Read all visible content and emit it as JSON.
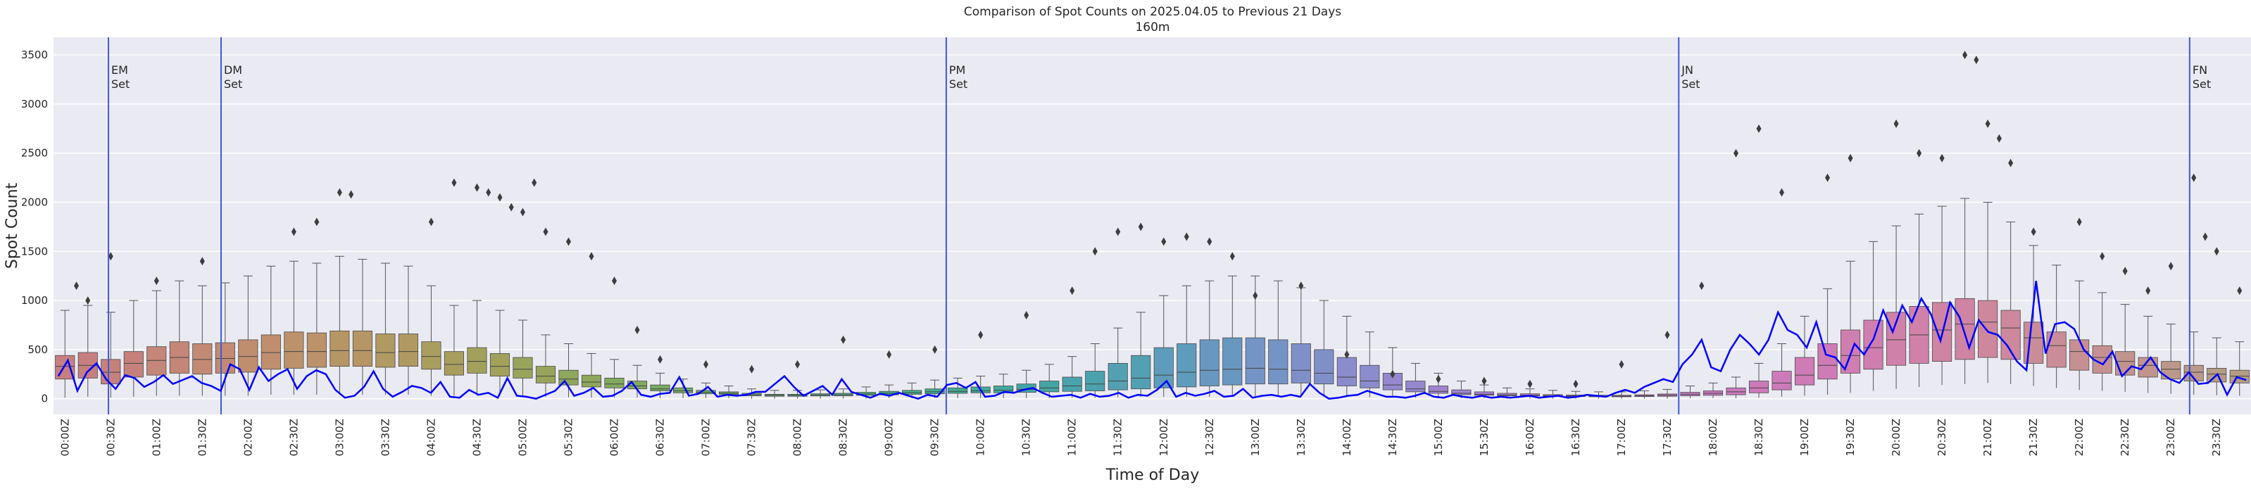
{
  "chart_data": {
    "type": "box",
    "title": "Comparison of Spot Counts on 2025.04.05 to Previous 21 Days",
    "subtitle": "160m",
    "xlabel": "Time of Day",
    "ylabel": "Spot Count",
    "ylim": [
      -160,
      3680
    ],
    "yticks": [
      0,
      500,
      1000,
      1500,
      2000,
      2500,
      3000,
      3500
    ],
    "grid": true,
    "bins_per_hour": 4,
    "n_bins": 96,
    "xtick_labels": [
      "00:00Z",
      "00:30Z",
      "01:00Z",
      "01:30Z",
      "02:00Z",
      "02:30Z",
      "03:00Z",
      "03:30Z",
      "04:00Z",
      "04:30Z",
      "05:00Z",
      "05:30Z",
      "06:00Z",
      "06:30Z",
      "07:00Z",
      "07:30Z",
      "08:00Z",
      "08:30Z",
      "09:00Z",
      "09:30Z",
      "10:00Z",
      "10:30Z",
      "11:00Z",
      "11:30Z",
      "12:00Z",
      "12:30Z",
      "13:00Z",
      "13:30Z",
      "14:00Z",
      "14:30Z",
      "15:00Z",
      "15:30Z",
      "16:00Z",
      "16:30Z",
      "17:00Z",
      "17:30Z",
      "18:00Z",
      "18:30Z",
      "19:00Z",
      "19:30Z",
      "20:00Z",
      "20:30Z",
      "21:00Z",
      "21:30Z",
      "22:00Z",
      "22:30Z",
      "23:00Z",
      "23:30Z"
    ],
    "set_lines": [
      {
        "label_lines": [
          "EM",
          "Set"
        ],
        "time_hours": 0.6
      },
      {
        "label_lines": [
          "DM",
          "Set"
        ],
        "time_hours": 1.83
      },
      {
        "label_lines": [
          "PM",
          "Set"
        ],
        "time_hours": 9.75
      },
      {
        "label_lines": [
          "JN",
          "Set"
        ],
        "time_hours": 17.75
      },
      {
        "label_lines": [
          "FN",
          "Set"
        ],
        "time_hours": 23.33
      }
    ],
    "box_series": {
      "name": "previous 21 days",
      "q1": [
        200,
        210,
        150,
        220,
        240,
        260,
        250,
        260,
        270,
        300,
        310,
        320,
        330,
        330,
        320,
        330,
        300,
        240,
        260,
        230,
        210,
        160,
        140,
        120,
        110,
        100,
        80,
        60,
        50,
        45,
        30,
        25,
        25,
        28,
        30,
        35,
        40,
        45,
        50,
        55,
        60,
        60,
        65,
        70,
        75,
        80,
        90,
        100,
        110,
        120,
        130,
        140,
        150,
        150,
        160,
        150,
        130,
        110,
        90,
        70,
        55,
        40,
        35,
        30,
        28,
        25,
        22,
        20,
        20,
        22,
        25,
        30,
        35,
        40,
        60,
        90,
        140,
        200,
        260,
        300,
        340,
        360,
        380,
        400,
        420,
        400,
        360,
        320,
        290,
        260,
        240,
        220,
        200,
        180,
        170,
        160
      ],
      "median": [
        330,
        340,
        270,
        360,
        390,
        420,
        400,
        410,
        430,
        470,
        480,
        480,
        490,
        490,
        470,
        480,
        430,
        350,
        380,
        330,
        300,
        230,
        200,
        170,
        150,
        130,
        100,
        80,
        65,
        55,
        40,
        35,
        35,
        38,
        40,
        48,
        55,
        60,
        70,
        75,
        80,
        85,
        95,
        110,
        130,
        150,
        180,
        210,
        240,
        270,
        290,
        300,
        310,
        300,
        290,
        260,
        220,
        180,
        140,
        100,
        75,
        55,
        45,
        38,
        35,
        30,
        28,
        26,
        26,
        30,
        35,
        45,
        55,
        70,
        110,
        160,
        240,
        340,
        440,
        520,
        600,
        650,
        700,
        760,
        780,
        720,
        620,
        540,
        480,
        420,
        380,
        340,
        300,
        270,
        250,
        230
      ],
      "q3": [
        440,
        470,
        400,
        480,
        530,
        580,
        560,
        570,
        600,
        650,
        680,
        670,
        690,
        690,
        660,
        660,
        580,
        480,
        520,
        460,
        420,
        330,
        290,
        240,
        210,
        180,
        140,
        110,
        85,
        70,
        55,
        45,
        45,
        50,
        55,
        65,
        75,
        85,
        100,
        110,
        120,
        130,
        150,
        180,
        220,
        280,
        360,
        440,
        520,
        560,
        600,
        620,
        620,
        600,
        560,
        500,
        420,
        340,
        260,
        180,
        130,
        90,
        70,
        55,
        50,
        42,
        38,
        35,
        35,
        40,
        48,
        65,
        80,
        110,
        180,
        280,
        420,
        560,
        700,
        800,
        880,
        940,
        980,
        1020,
        1000,
        900,
        780,
        680,
        600,
        540,
        480,
        420,
        380,
        340,
        310,
        290
      ],
      "wlo": [
        10,
        20,
        10,
        20,
        30,
        30,
        30,
        30,
        30,
        40,
        40,
        40,
        40,
        40,
        40,
        40,
        30,
        30,
        30,
        30,
        20,
        20,
        15,
        10,
        10,
        10,
        5,
        5,
        5,
        5,
        0,
        0,
        0,
        0,
        0,
        0,
        5,
        5,
        5,
        5,
        5,
        5,
        5,
        5,
        10,
        10,
        15,
        20,
        20,
        20,
        20,
        25,
        25,
        25,
        25,
        20,
        20,
        15,
        10,
        10,
        5,
        5,
        5,
        0,
        0,
        0,
        0,
        0,
        0,
        0,
        0,
        5,
        5,
        5,
        10,
        20,
        30,
        40,
        60,
        80,
        100,
        120,
        140,
        150,
        160,
        150,
        130,
        110,
        90,
        80,
        70,
        60,
        50,
        40,
        35,
        30
      ],
      "whi": [
        900,
        950,
        880,
        1000,
        1100,
        1200,
        1150,
        1180,
        1250,
        1350,
        1400,
        1380,
        1450,
        1420,
        1380,
        1350,
        1150,
        950,
        1000,
        900,
        800,
        650,
        560,
        460,
        400,
        340,
        260,
        200,
        160,
        130,
        100,
        85,
        85,
        90,
        100,
        120,
        140,
        160,
        190,
        210,
        230,
        250,
        290,
        350,
        430,
        560,
        720,
        880,
        1050,
        1150,
        1200,
        1250,
        1250,
        1200,
        1130,
        1000,
        840,
        680,
        520,
        360,
        260,
        180,
        140,
        110,
        100,
        85,
        75,
        70,
        70,
        80,
        95,
        130,
        160,
        220,
        360,
        560,
        840,
        1120,
        1400,
        1600,
        1760,
        1880,
        1960,
        2040,
        2000,
        1800,
        1560,
        1360,
        1200,
        1080,
        960,
        840,
        760,
        680,
        620,
        580
      ],
      "colors": [
        "#c67f7f",
        "#c6817c",
        "#c48678",
        "#c28a73",
        "#bf8e6e",
        "#bb926a",
        "#b69665",
        "#b09a61",
        "#a99e5e",
        "#a1a15c",
        "#98a45b",
        "#8ea75c",
        "#83a95e",
        "#78ab62",
        "#6cac68",
        "#61ad6f",
        "#56ad77",
        "#4dad80",
        "#46ac89",
        "#42ab92",
        "#41a99b",
        "#44a6a4",
        "#4aa3ac",
        "#53a0b3",
        "#5d9cba",
        "#6898c0",
        "#7494c5",
        "#7f90c9",
        "#8a8ccc",
        "#9588ce",
        "#9f84cf",
        "#a981cf",
        "#b17ece",
        "#b97ccc",
        "#c07ac9",
        "#c579c5",
        "#ca79c0",
        "#cd7abb",
        "#cf7bb5",
        "#d07eaf",
        "#d081a9",
        "#cf84a3",
        "#cd889d",
        "#ca8c97",
        "#c69092",
        "#c1948d",
        "#bb9889",
        "#b49c85"
      ]
    },
    "outlier_points": [
      {
        "t": 0.25,
        "v": 1000
      },
      {
        "t": 0.125,
        "v": 1150
      },
      {
        "t": 0.5,
        "v": 1450
      },
      {
        "t": 1.0,
        "v": 1200
      },
      {
        "t": 1.5,
        "v": 1400
      },
      {
        "t": 2.5,
        "v": 1700
      },
      {
        "t": 2.75,
        "v": 1800
      },
      {
        "t": 3.0,
        "v": 2100
      },
      {
        "t": 3.125,
        "v": 2080
      },
      {
        "t": 4.0,
        "v": 1800
      },
      {
        "t": 4.25,
        "v": 2200
      },
      {
        "t": 4.5,
        "v": 2150
      },
      {
        "t": 4.625,
        "v": 2100
      },
      {
        "t": 4.75,
        "v": 2050
      },
      {
        "t": 4.875,
        "v": 1950
      },
      {
        "t": 5.0,
        "v": 1900
      },
      {
        "t": 5.125,
        "v": 2200
      },
      {
        "t": 5.25,
        "v": 1700
      },
      {
        "t": 5.5,
        "v": 1600
      },
      {
        "t": 5.75,
        "v": 1450
      },
      {
        "t": 6.0,
        "v": 1200
      },
      {
        "t": 6.25,
        "v": 700
      },
      {
        "t": 6.5,
        "v": 400
      },
      {
        "t": 7.0,
        "v": 350
      },
      {
        "t": 7.5,
        "v": 300
      },
      {
        "t": 8.0,
        "v": 350
      },
      {
        "t": 8.5,
        "v": 600
      },
      {
        "t": 9.0,
        "v": 450
      },
      {
        "t": 9.5,
        "v": 500
      },
      {
        "t": 10.0,
        "v": 650
      },
      {
        "t": 10.5,
        "v": 850
      },
      {
        "t": 11.0,
        "v": 1100
      },
      {
        "t": 11.25,
        "v": 1500
      },
      {
        "t": 11.5,
        "v": 1700
      },
      {
        "t": 11.75,
        "v": 1750
      },
      {
        "t": 12.0,
        "v": 1600
      },
      {
        "t": 12.25,
        "v": 1650
      },
      {
        "t": 12.5,
        "v": 1600
      },
      {
        "t": 12.75,
        "v": 1450
      },
      {
        "t": 13.0,
        "v": 1050
      },
      {
        "t": 13.5,
        "v": 1150
      },
      {
        "t": 14.0,
        "v": 450
      },
      {
        "t": 14.5,
        "v": 250
      },
      {
        "t": 15.0,
        "v": 200
      },
      {
        "t": 15.5,
        "v": 180
      },
      {
        "t": 16.0,
        "v": 150
      },
      {
        "t": 16.5,
        "v": 150
      },
      {
        "t": 17.0,
        "v": 350
      },
      {
        "t": 17.5,
        "v": 650
      },
      {
        "t": 17.875,
        "v": 1150
      },
      {
        "t": 18.25,
        "v": 2500
      },
      {
        "t": 18.5,
        "v": 2750
      },
      {
        "t": 18.75,
        "v": 2100
      },
      {
        "t": 19.25,
        "v": 2250
      },
      {
        "t": 19.5,
        "v": 2450
      },
      {
        "t": 20.0,
        "v": 2800
      },
      {
        "t": 20.25,
        "v": 2500
      },
      {
        "t": 20.5,
        "v": 2450
      },
      {
        "t": 20.75,
        "v": 3500
      },
      {
        "t": 20.875,
        "v": 3450
      },
      {
        "t": 21.0,
        "v": 2800
      },
      {
        "t": 21.125,
        "v": 2650
      },
      {
        "t": 21.25,
        "v": 2400
      },
      {
        "t": 21.5,
        "v": 1700
      },
      {
        "t": 22.0,
        "v": 1800
      },
      {
        "t": 22.25,
        "v": 1450
      },
      {
        "t": 22.5,
        "v": 1300
      },
      {
        "t": 22.75,
        "v": 1100
      },
      {
        "t": 23.0,
        "v": 1350
      },
      {
        "t": 23.25,
        "v": 2250
      },
      {
        "t": 23.375,
        "v": 1650
      },
      {
        "t": 23.5,
        "v": 1500
      },
      {
        "t": 23.75,
        "v": 1100
      }
    ],
    "line_series": {
      "name": "2025.04.05",
      "color": "#0000ff",
      "values": [
        230,
        390,
        80,
        270,
        360,
        200,
        100,
        240,
        210,
        120,
        170,
        240,
        150,
        190,
        230,
        160,
        130,
        80,
        350,
        300,
        90,
        320,
        180,
        250,
        300,
        100,
        230,
        290,
        250,
        90,
        10,
        30,
        120,
        280,
        100,
        20,
        70,
        130,
        110,
        60,
        170,
        20,
        10,
        90,
        40,
        60,
        10,
        210,
        30,
        20,
        0,
        40,
        80,
        180,
        30,
        60,
        110,
        20,
        30,
        80,
        170,
        40,
        20,
        50,
        60,
        220,
        30,
        50,
        120,
        20,
        40,
        30,
        40,
        70,
        70,
        150,
        230,
        120,
        30,
        80,
        130,
        40,
        200,
        70,
        40,
        10,
        50,
        30,
        60,
        30,
        0,
        40,
        20,
        140,
        160,
        110,
        170,
        20,
        30,
        70,
        60,
        90,
        110,
        60,
        20,
        30,
        40,
        10,
        50,
        20,
        30,
        60,
        10,
        40,
        30,
        90,
        180,
        20,
        60,
        30,
        50,
        80,
        20,
        30,
        100,
        10,
        30,
        40,
        20,
        40,
        20,
        150,
        60,
        0,
        10,
        30,
        40,
        80,
        50,
        20,
        20,
        10,
        30,
        60,
        20,
        10,
        40,
        20,
        10,
        30,
        10,
        20,
        10,
        20,
        30,
        10,
        20,
        30,
        10,
        20,
        40,
        30,
        20,
        60,
        90,
        60,
        120,
        160,
        200,
        170,
        350,
        450,
        600,
        320,
        280,
        500,
        650,
        560,
        450,
        600,
        880,
        700,
        650,
        520,
        780,
        450,
        420,
        300,
        560,
        450,
        610,
        900,
        680,
        950,
        780,
        1020,
        860,
        590,
        980,
        830,
        520,
        800,
        680,
        650,
        540,
        380,
        290,
        1200,
        460,
        760,
        780,
        710,
        500,
        400,
        350,
        480,
        230,
        330,
        300,
        420,
        270,
        200,
        160,
        270,
        150,
        160,
        250,
        40,
        220,
        190
      ]
    }
  }
}
